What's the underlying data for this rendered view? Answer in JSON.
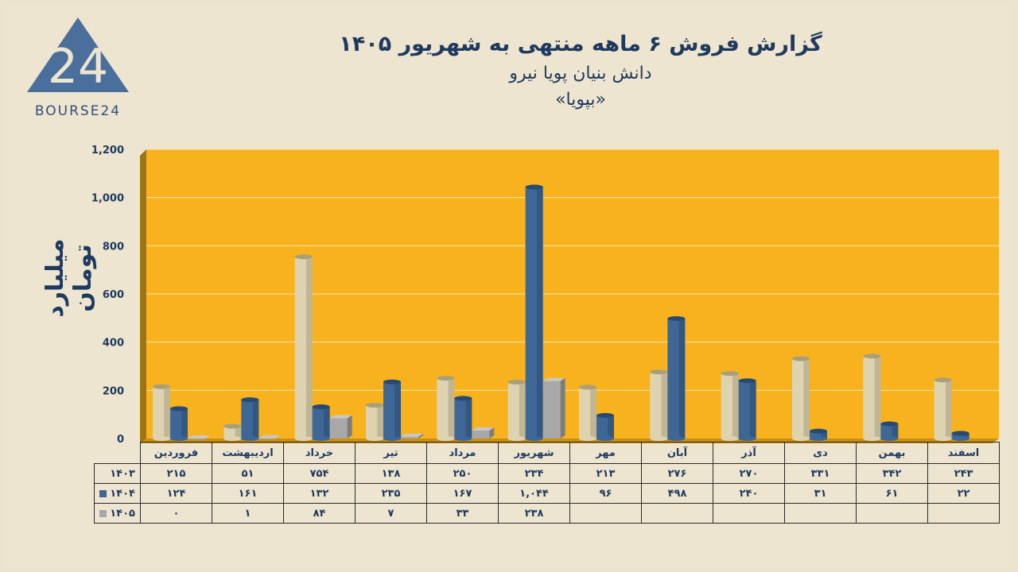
{
  "logo": {
    "text": "BOURSE24"
  },
  "header": {
    "title": "گزارش  فروش ۶ ماهه منتهی به شهریور ۱۴۰۵",
    "subtitle": "دانش بنیان پویا نیرو",
    "symbol": "«بپویا»"
  },
  "colors": {
    "plot_bg": "#f8b21d",
    "series_1403": "#ddd3b0",
    "series_1404": "#3f6796",
    "series_1405": "#a8a8a8"
  },
  "chart_data": {
    "type": "bar",
    "ylabel": "میلیارد تومان",
    "ylim": [
      0,
      1200
    ],
    "yticks": [
      "0",
      "200",
      "400",
      "600",
      "800",
      "1,000",
      "1,200"
    ],
    "grid": true,
    "categories": [
      "فروردین",
      "اردیبهشت",
      "خرداد",
      "تیر",
      "مرداد",
      "شهریور",
      "مهر",
      "آبان",
      "آذر",
      "دی",
      "بهمن",
      "اسفند"
    ],
    "series": [
      {
        "name": "۱۴۰۳",
        "values": [
          215,
          51,
          754,
          138,
          250,
          234,
          213,
          276,
          270,
          331,
          342,
          243
        ],
        "labels": [
          "۲۱۵",
          "۵۱",
          "۷۵۴",
          "۱۳۸",
          "۲۵۰",
          "۲۳۴",
          "۲۱۳",
          "۲۷۶",
          "۲۷۰",
          "۳۳۱",
          "۳۴۲",
          "۲۴۳"
        ]
      },
      {
        "name": "۱۴۰۴",
        "values": [
          124,
          161,
          132,
          235,
          167,
          1044,
          96,
          498,
          240,
          31,
          61,
          22
        ],
        "labels": [
          "۱۲۴",
          "۱۶۱",
          "۱۳۲",
          "۲۳۵",
          "۱۶۷",
          "۱,۰۴۴",
          "۹۶",
          "۴۹۸",
          "۲۴۰",
          "۳۱",
          "۶۱",
          "۲۲"
        ]
      },
      {
        "name": "۱۴۰۵",
        "values": [
          0,
          1,
          84,
          7,
          33,
          238,
          null,
          null,
          null,
          null,
          null,
          null
        ],
        "labels": [
          "۰",
          "۱",
          "۸۴",
          "۷",
          "۳۳",
          "۲۳۸",
          "",
          "",
          "",
          "",
          "",
          ""
        ]
      }
    ]
  }
}
